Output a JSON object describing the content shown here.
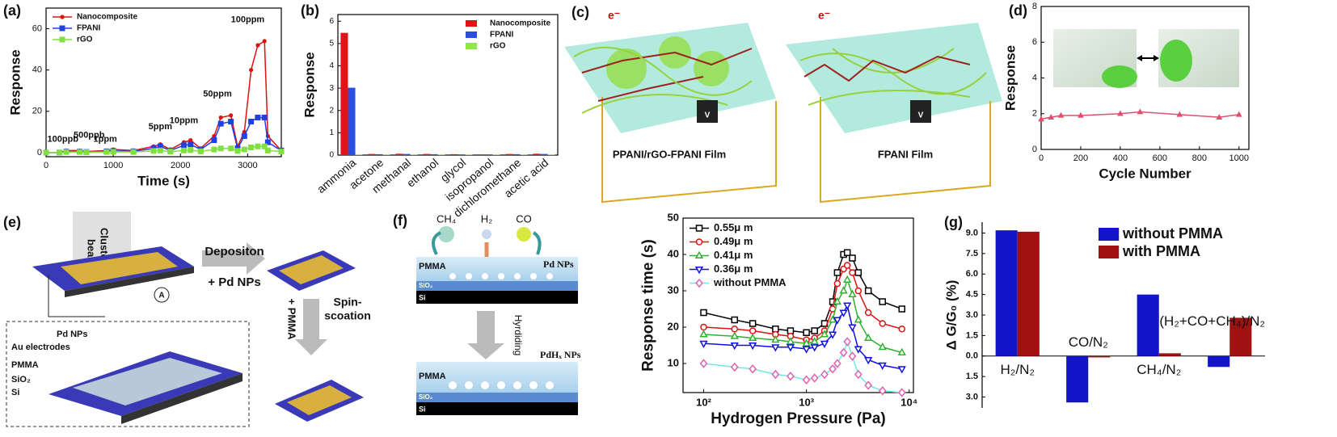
{
  "panel_labels": [
    "(a)",
    "(b)",
    "(c)",
    "(d)",
    "(e)",
    "(f)",
    "(g)"
  ],
  "chart_data": [
    {
      "type": "line",
      "xlabel": "Time (s)",
      "ylabel": "Response",
      "x": [
        0,
        200,
        300,
        500,
        600,
        900,
        1000,
        1300,
        1600,
        1700,
        1850,
        2050,
        2150,
        2300,
        2500,
        2600,
        2750,
        2850,
        2950,
        3050,
        3150,
        3250,
        3300,
        3500
      ],
      "series": [
        {
          "name": "Nanocomposite",
          "color": "#e01010",
          "marker": "dot",
          "values": [
            0,
            0,
            1,
            1,
            0.5,
            1,
            1.5,
            1,
            3,
            4,
            1.5,
            5,
            6,
            2,
            8,
            17,
            18,
            3,
            10,
            40,
            52,
            54,
            8,
            1
          ]
        },
        {
          "name": "FPANI",
          "color": "#2040e0",
          "marker": "square",
          "values": [
            0,
            0,
            0.5,
            0.5,
            0.3,
            0.6,
            0.8,
            0.6,
            2,
            3,
            1,
            3.5,
            4,
            1.5,
            6,
            14,
            15,
            2,
            8,
            15,
            17,
            17,
            5,
            1
          ]
        },
        {
          "name": "rGO",
          "color": "#80e040",
          "marker": "square",
          "values": [
            0,
            0,
            0.3,
            0.3,
            0.2,
            0.3,
            0.4,
            0.3,
            0.8,
            1,
            0.5,
            1,
            1.2,
            0.6,
            1.5,
            2,
            2,
            0.8,
            1.5,
            2.5,
            3,
            3,
            1,
            0.5
          ]
        }
      ],
      "annotations": [
        "100ppb",
        "500ppb",
        "1ppm",
        "5ppm",
        "10ppm",
        "50ppm",
        "100ppm"
      ],
      "xlim": [
        0,
        3500
      ],
      "xticks": [
        0,
        1000,
        2000,
        3000
      ],
      "ylim": [
        -2,
        70
      ],
      "yticks": [
        0,
        20,
        40,
        60
      ],
      "legend": "upper left"
    },
    {
      "type": "bar",
      "ylabel": "Response",
      "categories": [
        "ammonia",
        "acetone",
        "methanal",
        "ethanol",
        "glycol",
        "isopropanol",
        "dichloromethane",
        "acetic acid"
      ],
      "series": [
        {
          "name": "Nanocomposite",
          "color": "#e01414",
          "values": [
            5.48,
            0.05,
            0.06,
            0.05,
            0.04,
            0.03,
            0.05,
            0.06
          ]
        },
        {
          "name": "FPANI",
          "color": "#2a4ee0",
          "values": [
            3.02,
            0.04,
            0.05,
            0.04,
            0.03,
            0.03,
            0.04,
            0.05
          ]
        },
        {
          "name": "rGO",
          "color": "#8ee84a",
          "values": [
            0.02,
            0.02,
            0.02,
            0.02,
            0.02,
            0.02,
            0.02,
            0.02
          ]
        }
      ],
      "ylim": [
        0,
        6.3
      ],
      "yticks": [
        0,
        1,
        2,
        3,
        4,
        5,
        6
      ],
      "legend": "upper right"
    },
    {
      "type": "line",
      "xlabel": "Cycle Number",
      "ylabel": "Response",
      "x": [
        0,
        50,
        100,
        200,
        400,
        500,
        700,
        900,
        1000
      ],
      "series": [
        {
          "name": "Response",
          "color": "#e0506e",
          "marker": "triangle",
          "values": [
            1.7,
            1.8,
            1.9,
            1.9,
            2.0,
            2.1,
            1.95,
            1.8,
            1.95
          ]
        }
      ],
      "xlim": [
        0,
        1050
      ],
      "xticks": [
        0,
        200,
        400,
        600,
        800,
        1000
      ],
      "ylim": [
        0,
        8
      ],
      "yticks": [
        0,
        2,
        4,
        6,
        8
      ]
    },
    {
      "type": "line",
      "xlabel": "Hydrogen Pressure (Pa)",
      "ylabel": "Response time (s)",
      "xlog": true,
      "open_markers": true,
      "x": [
        100,
        200,
        300,
        500,
        700,
        1000,
        1200,
        1500,
        1800,
        2000,
        2300,
        2500,
        2800,
        3200,
        4000,
        5500,
        8500
      ],
      "series": [
        {
          "name": "0.55μ m",
          "color": "#000000",
          "marker": "square",
          "values": [
            24,
            22,
            21,
            19.5,
            19,
            18.5,
            19,
            21,
            27,
            35,
            40,
            40.5,
            39,
            35,
            30,
            27,
            25
          ]
        },
        {
          "name": "0.49μ m",
          "color": "#e01010",
          "marker": "circle",
          "values": [
            20,
            19.5,
            19,
            18,
            17.5,
            16.5,
            17,
            19,
            25,
            32,
            36,
            37,
            35,
            30,
            24,
            21,
            19.5
          ]
        },
        {
          "name": "0.41μ m",
          "color": "#30b030",
          "marker": "triangle",
          "values": [
            18,
            17.5,
            17,
            16.5,
            16,
            15.5,
            16,
            18,
            22,
            27,
            30,
            33,
            29,
            22,
            17,
            14.5,
            13
          ]
        },
        {
          "name": "0.36μ m",
          "color": "#1010e0",
          "marker": "triangle-down",
          "values": [
            15.5,
            15,
            15,
            14.5,
            14.5,
            14,
            14.5,
            15.5,
            18,
            22,
            24,
            26,
            20,
            14,
            11,
            9.5,
            8.5
          ]
        },
        {
          "name": "without PMMA",
          "color": "#e060b0",
          "line_color": "#70e8e0",
          "marker": "diamond",
          "values": [
            10,
            9,
            8.5,
            7,
            6.5,
            5.5,
            6,
            7,
            8.5,
            10,
            13,
            16,
            12,
            7,
            4,
            2.5,
            2
          ]
        }
      ],
      "xlim": [
        63,
        11000
      ],
      "xticks": [
        {
          "value": 100,
          "label": "10²"
        },
        {
          "value": 1000,
          "label": "10³"
        },
        {
          "value": 10000,
          "label": "10⁴"
        }
      ],
      "ylim": [
        2,
        50
      ],
      "yticks": [
        10,
        20,
        30,
        40,
        50
      ],
      "legend": "upper left"
    },
    {
      "type": "bar",
      "ylabel": "Δ G/G₀ (%)",
      "categories": [
        "H₂/N₂",
        "CO/N₂",
        "CH₄/N₂",
        "(H₂+CO+CH₄)/N₂"
      ],
      "series": [
        {
          "name": "without PMMA",
          "color": "#1414c8",
          "values": [
            9.2,
            -3.4,
            4.5,
            -0.8
          ]
        },
        {
          "name": "with PMMA",
          "color": "#a01212",
          "values": [
            9.1,
            -0.1,
            0.2,
            2.8
          ]
        }
      ],
      "ylim": [
        -3.8,
        9.8
      ],
      "yticks": [
        {
          "value": 9,
          "label": "9.0"
        },
        {
          "value": 7.5,
          "label": "7.5"
        },
        {
          "value": 6,
          "label": "6.0"
        },
        {
          "value": 4.5,
          "label": "4.5"
        },
        {
          "value": 3,
          "label": "3.0"
        },
        {
          "value": 1.5,
          "label": "1.5"
        },
        {
          "value": 0,
          "label": "0.0"
        },
        {
          "value": -1.5,
          "label": "1.5"
        },
        {
          "value": -3,
          "label": "3.0"
        }
      ],
      "legend": "upper right"
    }
  ],
  "diagram_c": {
    "films": [
      "PPANI/rGO-FPANI Film",
      "FPANI Film"
    ],
    "electron": "e⁻",
    "meter": "V"
  },
  "diagram_e": {
    "beam": [
      "Cluster",
      "beam"
    ],
    "step1": [
      "Depositon",
      "+ Pd NPs"
    ],
    "step2": [
      "Spin-",
      "scoation",
      "+ PMMA"
    ],
    "ammeter": "A",
    "layers": [
      "Pd NPs",
      "Au electrodes",
      "PMMA",
      "SiO₂",
      "Si"
    ]
  },
  "diagram_f": {
    "gases": [
      "CH₄",
      "H₂",
      "CO"
    ],
    "top": [
      "Pd NPs",
      "PMMA",
      "SiO₂",
      "Si"
    ],
    "step": "Hyrdiding",
    "bottom": [
      "PdHₓ NPs",
      "PMMA",
      "SiO₂",
      "Si"
    ]
  }
}
